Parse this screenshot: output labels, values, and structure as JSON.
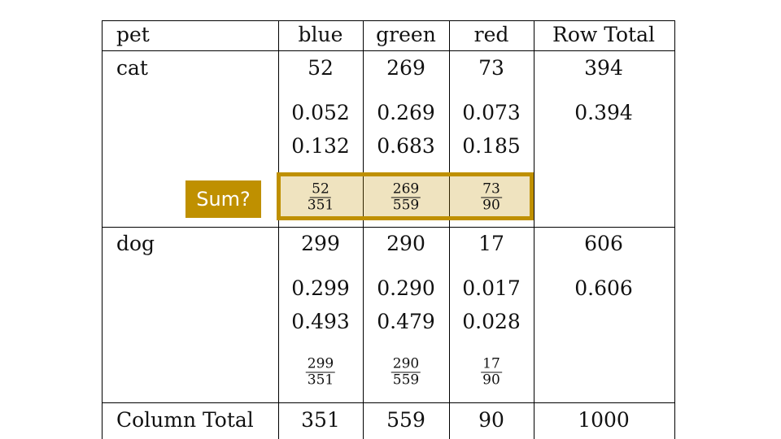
{
  "accent": "#BF9000",
  "headers": [
    "pet",
    "blue",
    "green",
    "red",
    "Row Total"
  ],
  "rows": [
    {
      "label": "cat",
      "counts": [
        "52",
        "269",
        "73",
        "394"
      ],
      "joint": [
        "0.052",
        "0.269",
        "0.073",
        "0.394"
      ],
      "conditional": [
        "0.132",
        "0.683",
        "0.185"
      ],
      "fractions": [
        [
          "52",
          "351"
        ],
        [
          "269",
          "559"
        ],
        [
          "73",
          "90"
        ]
      ]
    },
    {
      "label": "dog",
      "counts": [
        "299",
        "290",
        "17",
        "606"
      ],
      "joint": [
        "0.299",
        "0.290",
        "0.017",
        "0.606"
      ],
      "conditional": [
        "0.493",
        "0.479",
        "0.028"
      ],
      "fractions": [
        [
          "299",
          "351"
        ],
        [
          "290",
          "559"
        ],
        [
          "17",
          "90"
        ]
      ]
    }
  ],
  "total_row": {
    "label": "Column Total",
    "values": [
      "351",
      "559",
      "90",
      "1000"
    ]
  },
  "callout": "Sum?"
}
